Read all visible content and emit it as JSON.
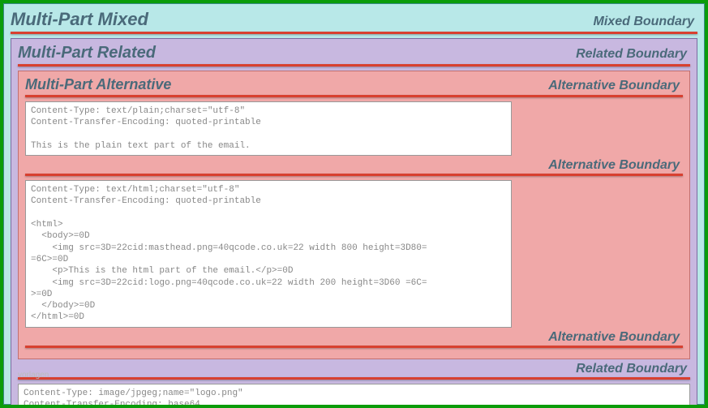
{
  "colors": {
    "outer_border": "#0a9c0a",
    "mixed_bg": "#b8e8e8",
    "mixed_border": "#3a8a8a",
    "related_bg": "#c8b8e0",
    "related_border": "#7a6aa0",
    "alt_bg": "#f0a8a8",
    "alt_border": "#c07070",
    "boundary_line": "#d84030",
    "title_color": "#4a6a7a",
    "code_bg": "#ffffff",
    "code_text": "#888888"
  },
  "mixed": {
    "title": "Multi-Part Mixed",
    "boundary_label": "Mixed Boundary"
  },
  "related": {
    "title": "Multi-Part Related",
    "boundary_label_top": "Related Boundary",
    "boundary_label_mid": "Related Boundary"
  },
  "alternative": {
    "title": "Multi-Part Alternative",
    "boundary_label_top": "Alternative Boundary",
    "boundary_label_mid": "Alternative Boundary",
    "boundary_label_bottom": "Alternative Boundary"
  },
  "plain_block": "Content-Type: text/plain;charset=\"utf-8\"\nContent-Transfer-Encoding: quoted-printable\n\nThis is the plain text part of the email.",
  "html_block": "Content-Type: text/html;charset=\"utf-8\"\nContent-Transfer-Encoding: quoted-printable\n\n<html>\n  <body>=0D\n    <img src=3D=22cid:masthead.png=40qcode.co.uk=22 width 800 height=3D80=\n=6C>=0D\n    <p>This is the html part of the email.</p>=0D\n    <img src=3D=22cid:logo.png=40qcode.co.uk=22 width 200 height=3D60 =6C=\n>=0D\n  </body>=0D\n</html>=0D",
  "image_block": "Content-Type: image/jpgeg;name=\"logo.png\"\nContent-Transfer-Encoding: base64",
  "watermark": "vorlagen"
}
